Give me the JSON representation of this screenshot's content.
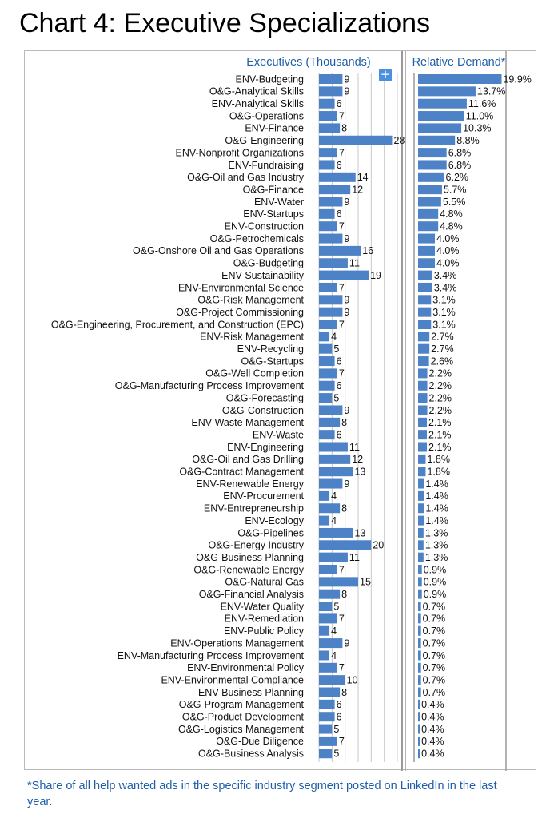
{
  "chart_data": {
    "type": "bar",
    "title": "Chart 4: Executive Specializations",
    "categories": [
      "ENV-Budgeting",
      "O&G-Analytical Skills",
      "ENV-Analytical Skills",
      "O&G-Operations",
      "ENV-Finance",
      "O&G-Engineering",
      "ENV-Nonprofit Organizations",
      "ENV-Fundraising",
      "O&G-Oil and Gas Industry",
      "O&G-Finance",
      "ENV-Water",
      "ENV-Startups",
      "ENV-Construction",
      "O&G-Petrochemicals",
      "O&G-Onshore Oil and Gas Operations",
      "O&G-Budgeting",
      "ENV-Sustainability",
      "ENV-Environmental Science",
      "O&G-Risk Management",
      "O&G-Project Commissioning",
      "O&G-Engineering, Procurement, and Construction (EPC)",
      "ENV-Risk Management",
      "ENV-Recycling",
      "O&G-Startups",
      "O&G-Well Completion",
      "O&G-Manufacturing Process Improvement",
      "O&G-Forecasting",
      "O&G-Construction",
      "ENV-Waste Management",
      "ENV-Waste",
      "ENV-Engineering",
      "O&G-Oil and Gas Drilling",
      "O&G-Contract Management",
      "ENV-Renewable Energy",
      "ENV-Procurement",
      "ENV-Entrepreneurship",
      "ENV-Ecology",
      "O&G-Pipelines",
      "O&G-Energy Industry",
      "O&G-Business Planning",
      "O&G-Renewable Energy",
      "O&G-Natural Gas",
      "O&G-Financial Analysis",
      "ENV-Water Quality",
      "ENV-Remediation",
      "ENV-Public Policy",
      "ENV-Operations Management",
      "ENV-Manufacturing Process Improvement",
      "ENV-Environmental Policy",
      "ENV-Environmental Compliance",
      "ENV-Business Planning",
      "O&G-Program Management",
      "O&G-Product Development",
      "O&G-Logistics Management",
      "O&G-Due Diligence",
      "O&G-Business Analysis"
    ],
    "series": [
      {
        "name": "Executives (Thousands)",
        "values": [
          9,
          9,
          6,
          7,
          8,
          28,
          7,
          6,
          14,
          12,
          9,
          6,
          7,
          9,
          16,
          11,
          19,
          7,
          9,
          9,
          7,
          4,
          5,
          6,
          7,
          6,
          5,
          9,
          8,
          6,
          11,
          12,
          13,
          9,
          4,
          8,
          4,
          13,
          20,
          11,
          7,
          15,
          8,
          5,
          7,
          4,
          9,
          4,
          7,
          10,
          8,
          6,
          6,
          5,
          7,
          5
        ],
        "labels": [
          "9",
          "9",
          "6",
          "7",
          "8",
          "28",
          "7",
          "6",
          "14",
          "12",
          "9",
          "6",
          "7",
          "9",
          "16",
          "11",
          "19",
          "7",
          "9",
          "9",
          "7",
          "4",
          "5",
          "6",
          "7",
          "6",
          "5",
          "9",
          "8",
          "6",
          "11",
          "12",
          "13",
          "9",
          "4",
          "8",
          "4",
          "13",
          "20",
          "11",
          "7",
          "15",
          "8",
          "5",
          "7",
          "4",
          "9",
          "4",
          "7",
          "10",
          "8",
          "6",
          "6",
          "5",
          "7",
          "5"
        ]
      },
      {
        "name": "Relative Demand*",
        "values": [
          19.9,
          13.7,
          11.6,
          11.0,
          10.3,
          8.8,
          6.8,
          6.8,
          6.2,
          5.7,
          5.5,
          4.8,
          4.8,
          4.0,
          4.0,
          4.0,
          3.4,
          3.4,
          3.1,
          3.1,
          3.1,
          2.7,
          2.7,
          2.6,
          2.2,
          2.2,
          2.2,
          2.2,
          2.1,
          2.1,
          2.1,
          1.8,
          1.8,
          1.4,
          1.4,
          1.4,
          1.4,
          1.3,
          1.3,
          1.3,
          0.9,
          0.9,
          0.9,
          0.7,
          0.7,
          0.7,
          0.7,
          0.7,
          0.7,
          0.7,
          0.7,
          0.4,
          0.4,
          0.4,
          0.4,
          0.4
        ],
        "labels": [
          "19.9%",
          "13.7%",
          "11.6%",
          "11.0%",
          "10.3%",
          "8.8%",
          "6.8%",
          "6.8%",
          "6.2%",
          "5.7%",
          "5.5%",
          "4.8%",
          "4.8%",
          "4.0%",
          "4.0%",
          "4.0%",
          "3.4%",
          "3.4%",
          "3.1%",
          "3.1%",
          "3.1%",
          "2.7%",
          "2.7%",
          "2.6%",
          "2.2%",
          "2.2%",
          "2.2%",
          "2.2%",
          "2.1%",
          "2.1%",
          "2.1%",
          "1.8%",
          "1.8%",
          "1.4%",
          "1.4%",
          "1.4%",
          "1.4%",
          "1.3%",
          "1.3%",
          "1.3%",
          "0.9%",
          "0.9%",
          "0.9%",
          "0.7%",
          "0.7%",
          "0.7%",
          "0.7%",
          "0.7%",
          "0.7%",
          "0.7%",
          "0.7%",
          "0.4%",
          "0.4%",
          "0.4%",
          "0.4%",
          "0.4%"
        ]
      }
    ],
    "xlim_executives": [
      0,
      30
    ],
    "xlim_demand": [
      0,
      20
    ],
    "grid": true,
    "bar_color": "#4e82c6",
    "header_color": "#1f5fa8"
  },
  "expand_icon": "+",
  "footnote": "*Share of all help wanted ads in the specific industry segment posted on LinkedIn in the last year."
}
